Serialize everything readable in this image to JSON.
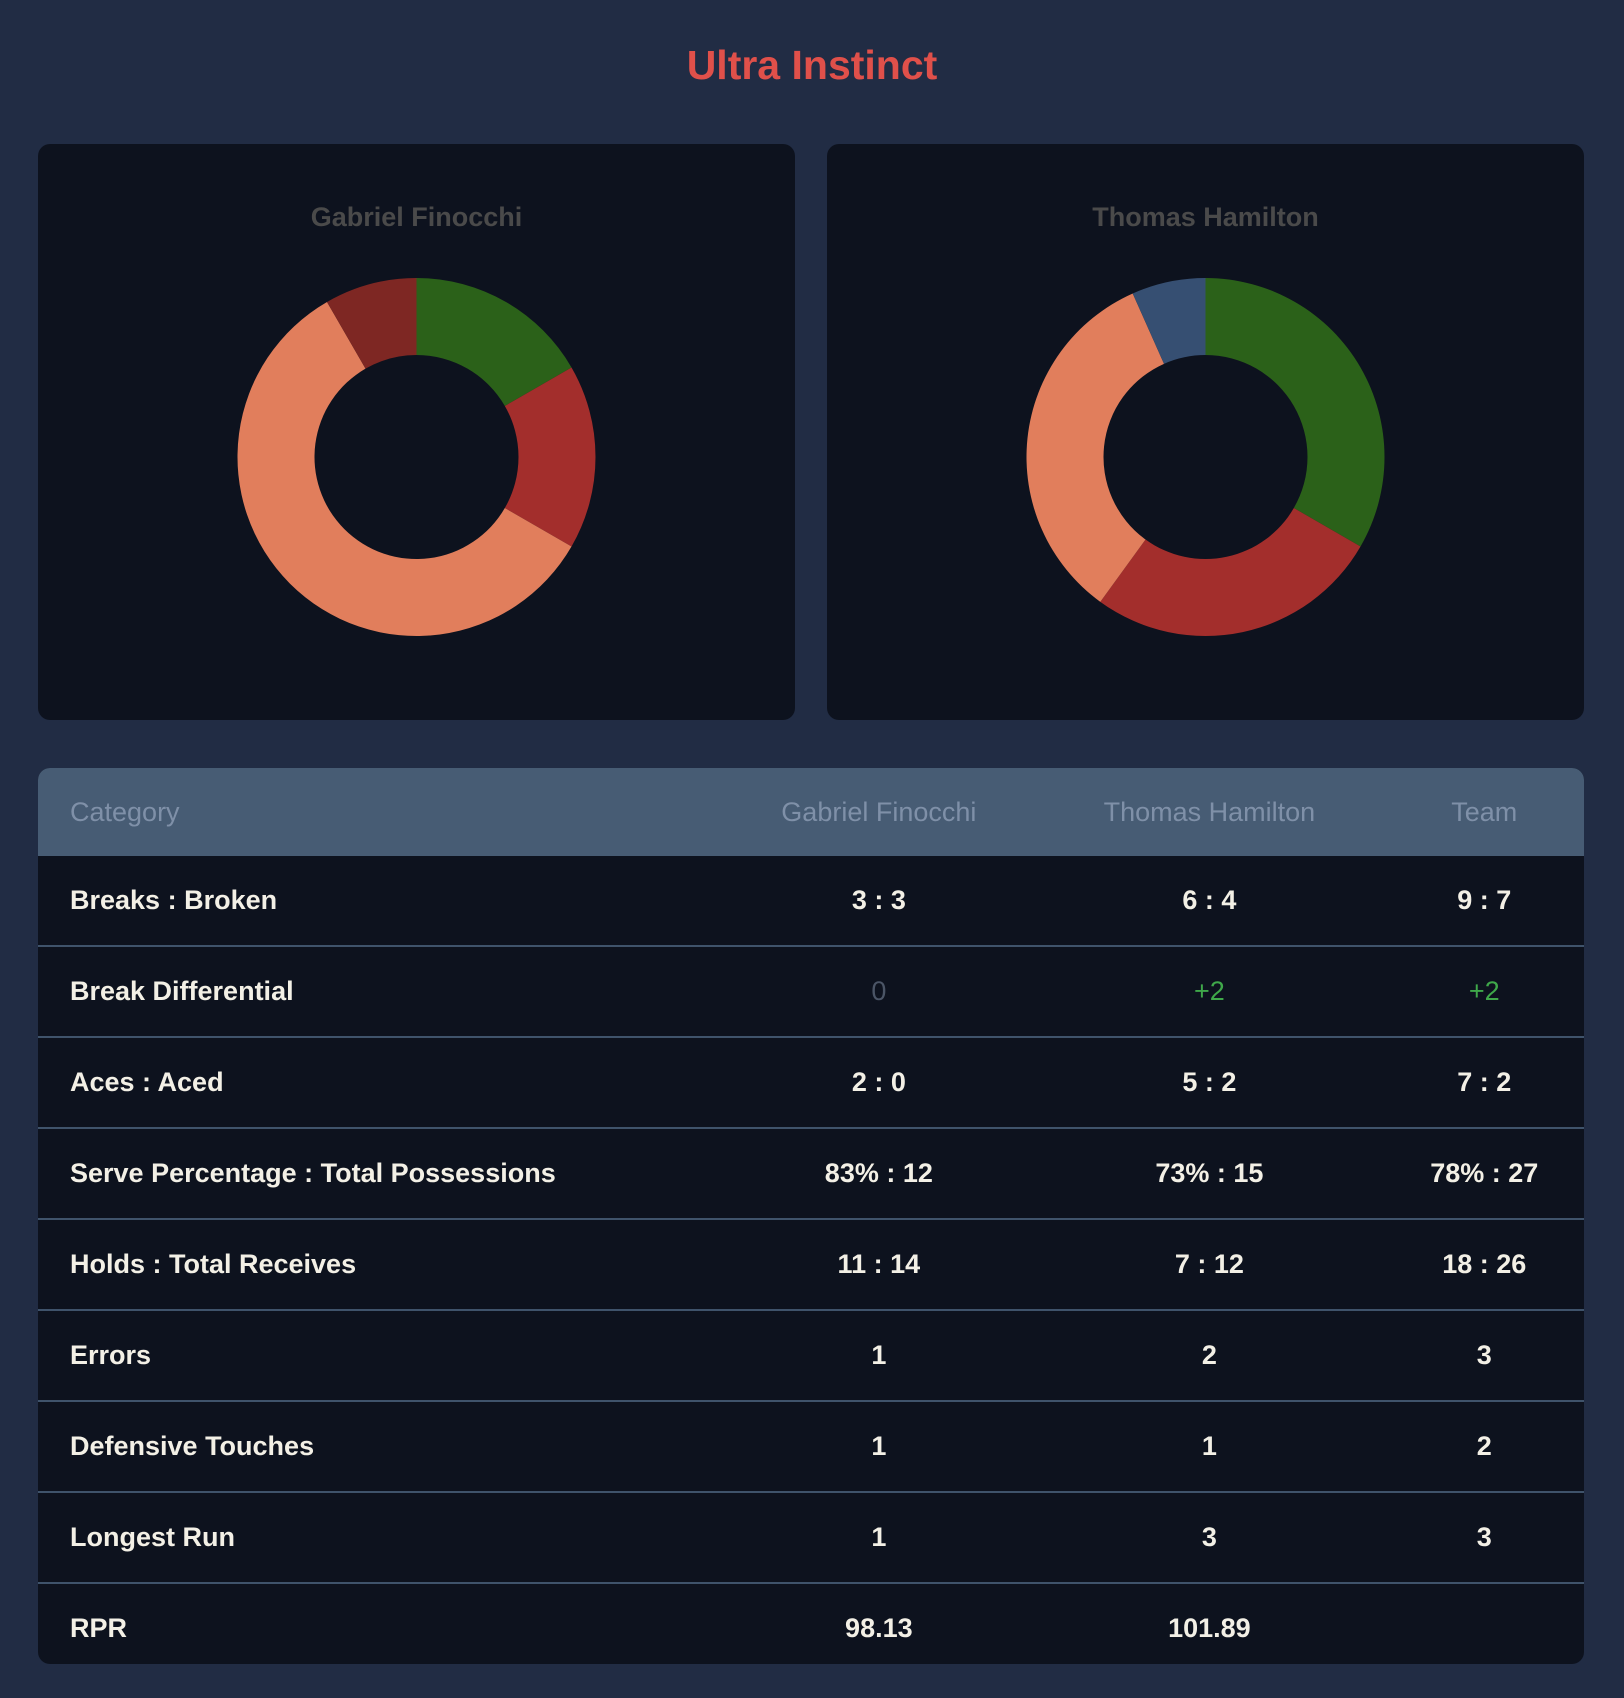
{
  "title": "Ultra Instinct",
  "chart_data": [
    {
      "type": "pie",
      "title": "Gabriel Finocchi",
      "donut": true,
      "values": [
        2,
        2,
        7,
        1
      ],
      "colors": [
        "#2b6119",
        "#a32e2c",
        "#e17e5c",
        "#7e2723"
      ],
      "legend": "none"
    },
    {
      "type": "pie",
      "title": "Thomas Hamilton",
      "donut": true,
      "values": [
        5,
        4,
        5,
        1
      ],
      "colors": [
        "#2b6119",
        "#a32e2c",
        "#e17e5c",
        "#364f72"
      ],
      "legend": "none"
    }
  ],
  "table": {
    "headers": [
      "Category",
      "Gabriel Finocchi",
      "Thomas Hamilton",
      "Team"
    ],
    "rows": [
      {
        "category": "Breaks : Broken",
        "p1": "3 : 3",
        "p2": "6 : 4",
        "team": "9 : 7"
      },
      {
        "category": "Break Differential",
        "p1": "0",
        "p2": "+2",
        "team": "+2"
      },
      {
        "category": "Aces : Aced",
        "p1": "2 : 0",
        "p2": "5 : 2",
        "team": "7 : 2"
      },
      {
        "category": "Serve Percentage : Total Possessions",
        "p1": "83% : 12",
        "p2": "73% : 15",
        "team": "78% : 27"
      },
      {
        "category": "Holds : Total Receives",
        "p1": "11 : 14",
        "p2": "7 : 12",
        "team": "18 : 26"
      },
      {
        "category": "Errors",
        "p1": "1",
        "p2": "2",
        "team": "3"
      },
      {
        "category": "Defensive Touches",
        "p1": "1",
        "p2": "1",
        "team": "2"
      },
      {
        "category": "Longest Run",
        "p1": "1",
        "p2": "3",
        "team": "3"
      },
      {
        "category": "RPR",
        "p1": "98.13",
        "p2": "101.89",
        "team": ""
      }
    ]
  }
}
